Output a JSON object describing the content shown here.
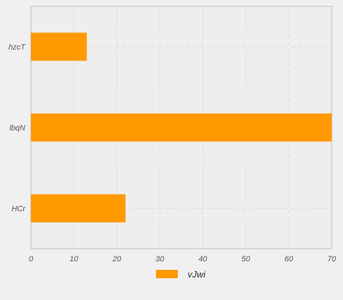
{
  "chart_data": {
    "type": "bar",
    "orientation": "horizontal",
    "categories": [
      "hzcT",
      "lbqN",
      "HCr"
    ],
    "series": [
      {
        "name": "vJwi",
        "values": [
          13,
          70,
          22
        ],
        "color": "#ff9900"
      }
    ],
    "xlim": [
      0,
      70
    ],
    "xticks": [
      0,
      10,
      20,
      30,
      40,
      50,
      60,
      70
    ],
    "grid": true,
    "legend_position": "bottom-center",
    "plot_background": "#eeeeee",
    "page_background": "#f0f0f0"
  }
}
